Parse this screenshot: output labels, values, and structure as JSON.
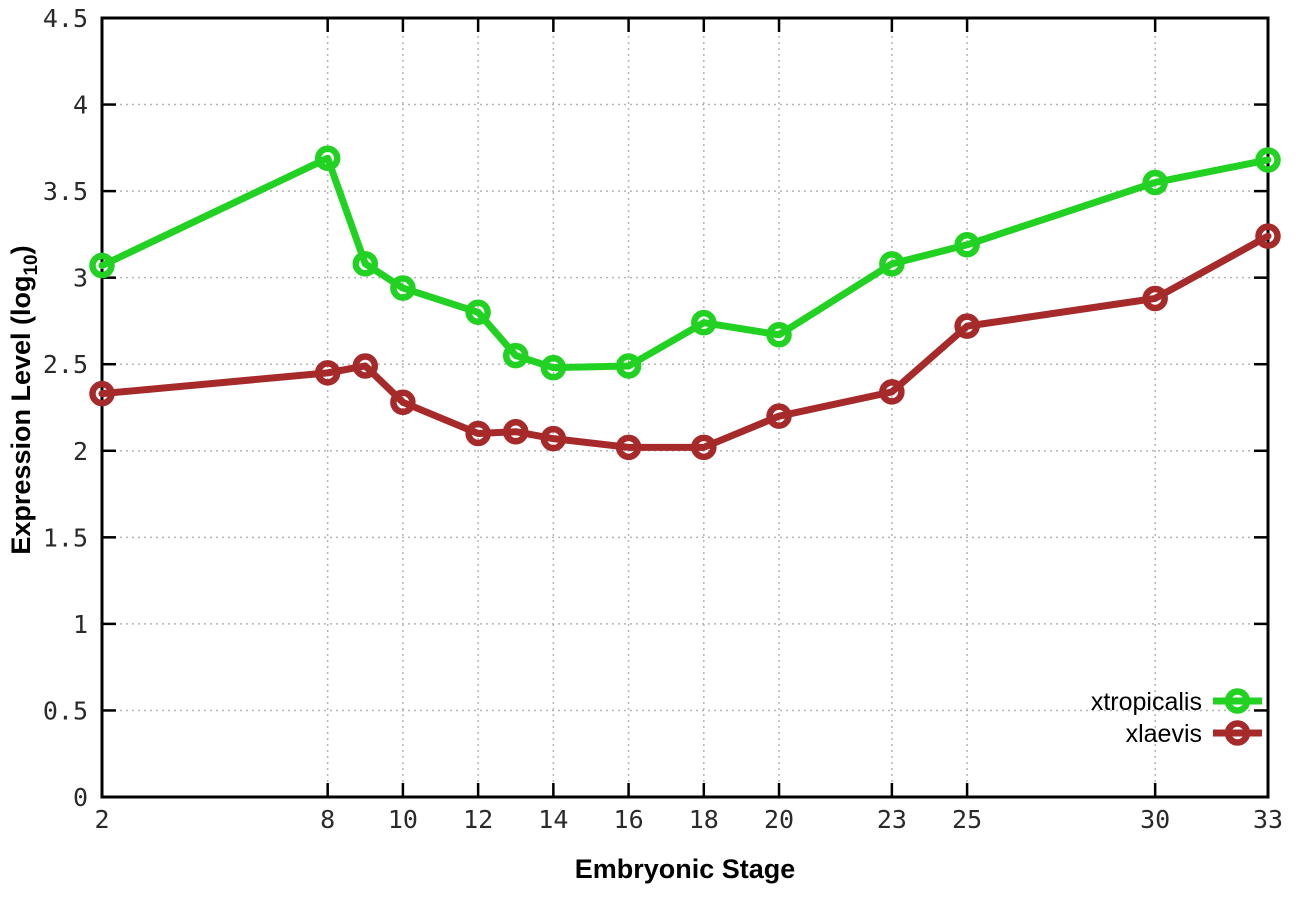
{
  "colors": {
    "background": "#ffffff",
    "axis": "#000000",
    "grid": "#b5b5b5",
    "tick_label": "#2a2a2a"
  },
  "chart_data": {
    "type": "line",
    "title": "",
    "xlabel": "Embryonic Stage",
    "ylabel": "Expression Level (log10)",
    "ylabel_parts": {
      "base": "Expression Level (log",
      "sub": "10",
      "close": ")"
    },
    "xlim": [
      2,
      33
    ],
    "ylim": [
      0,
      4.5
    ],
    "x_ticks": [
      2,
      8,
      10,
      12,
      14,
      16,
      18,
      20,
      23,
      25,
      30,
      33
    ],
    "y_ticks": [
      0,
      0.5,
      1,
      1.5,
      2,
      2.5,
      3,
      3.5,
      4,
      4.5
    ],
    "y_tick_labels": [
      "0",
      "0.5",
      "1",
      "1.5",
      "2",
      "2.5",
      "3",
      "3.5",
      "4",
      "4.5"
    ],
    "grid": true,
    "marker": "open-circle",
    "legend_position": "inside-bottom-right",
    "x": [
      2,
      8,
      9,
      10,
      12,
      13,
      14,
      16,
      18,
      20,
      23,
      25,
      30,
      33
    ],
    "series": [
      {
        "name": "xtropicalis",
        "color": "#22d222",
        "values": [
          3.07,
          3.69,
          3.08,
          2.94,
          2.8,
          2.55,
          2.48,
          2.49,
          2.74,
          2.67,
          3.08,
          3.19,
          3.55,
          3.68
        ]
      },
      {
        "name": "xlaevis",
        "color": "#a62a2a",
        "values": [
          2.33,
          2.45,
          2.49,
          2.28,
          2.1,
          2.11,
          2.07,
          2.02,
          2.02,
          2.2,
          2.34,
          2.72,
          2.88,
          3.24
        ]
      }
    ]
  }
}
